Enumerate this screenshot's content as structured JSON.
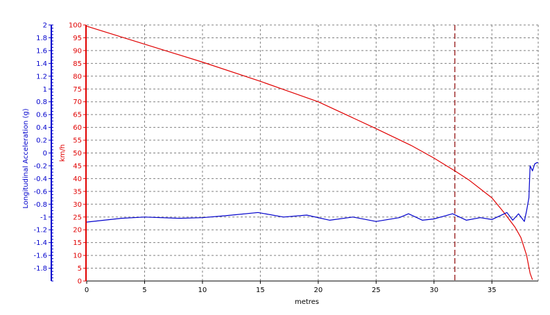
{
  "colors": {
    "accel": "#0000cc",
    "speed": "#e00000",
    "cursor": "#8b0000",
    "grid": "#808080",
    "axis_text": "#000000"
  },
  "chart_data": {
    "type": "line",
    "xlabel": "metres",
    "xlim": [
      0,
      39
    ],
    "x_ticks": [
      0,
      5,
      10,
      15,
      20,
      25,
      30,
      35
    ],
    "grid": true,
    "cursor_x": 31.8,
    "axes": {
      "accel": {
        "label": "Longitudinal Acceleration (g)",
        "ylim": [
          -2,
          2
        ],
        "ticks": [
          2,
          1.8,
          1.6,
          1.4,
          1.2,
          1,
          0.8,
          0.6,
          0.4,
          0.2,
          0,
          -0.2,
          -0.4,
          -0.6,
          -0.8,
          -1,
          -1.2,
          -1.4,
          -1.6,
          -1.8
        ]
      },
      "speed": {
        "label": "km/h",
        "ylim": [
          0,
          100
        ],
        "ticks": [
          100,
          95,
          90,
          85,
          80,
          75,
          70,
          65,
          60,
          55,
          50,
          45,
          40,
          35,
          30,
          25,
          20,
          15,
          10,
          5,
          0
        ]
      }
    },
    "series": [
      {
        "axis": "speed",
        "x": [
          0,
          5,
          10,
          15,
          20,
          25,
          28,
          30,
          31.8,
          33,
          35,
          36,
          37,
          37.5,
          38,
          38.3,
          38.5
        ],
        "y": [
          99.5,
          92.5,
          85.5,
          78,
          70,
          59.5,
          53,
          48,
          43,
          39.5,
          32.5,
          27,
          21,
          17,
          10,
          3,
          0.5
        ]
      },
      {
        "axis": "accel",
        "x": [
          0,
          3,
          5,
          8,
          10,
          12,
          14.8,
          17,
          19,
          21,
          23,
          25,
          27,
          27.8,
          29,
          30,
          31.6,
          32.8,
          34,
          35,
          36.3,
          36.8,
          37.3,
          37.8,
          38,
          38.2,
          38.3,
          38.5,
          38.7,
          38.9,
          39
        ],
        "y": [
          -1.08,
          -1.02,
          -1.0,
          -1.02,
          -1.01,
          -0.98,
          -0.93,
          -1.0,
          -0.97,
          -1.05,
          -1.0,
          -1.07,
          -1.01,
          -0.95,
          -1.05,
          -1.03,
          -0.95,
          -1.05,
          -1.01,
          -1.04,
          -0.93,
          -1.05,
          -0.95,
          -1.07,
          -0.9,
          -0.7,
          -0.2,
          -0.28,
          -0.17,
          -0.15,
          -0.15
        ]
      }
    ]
  }
}
